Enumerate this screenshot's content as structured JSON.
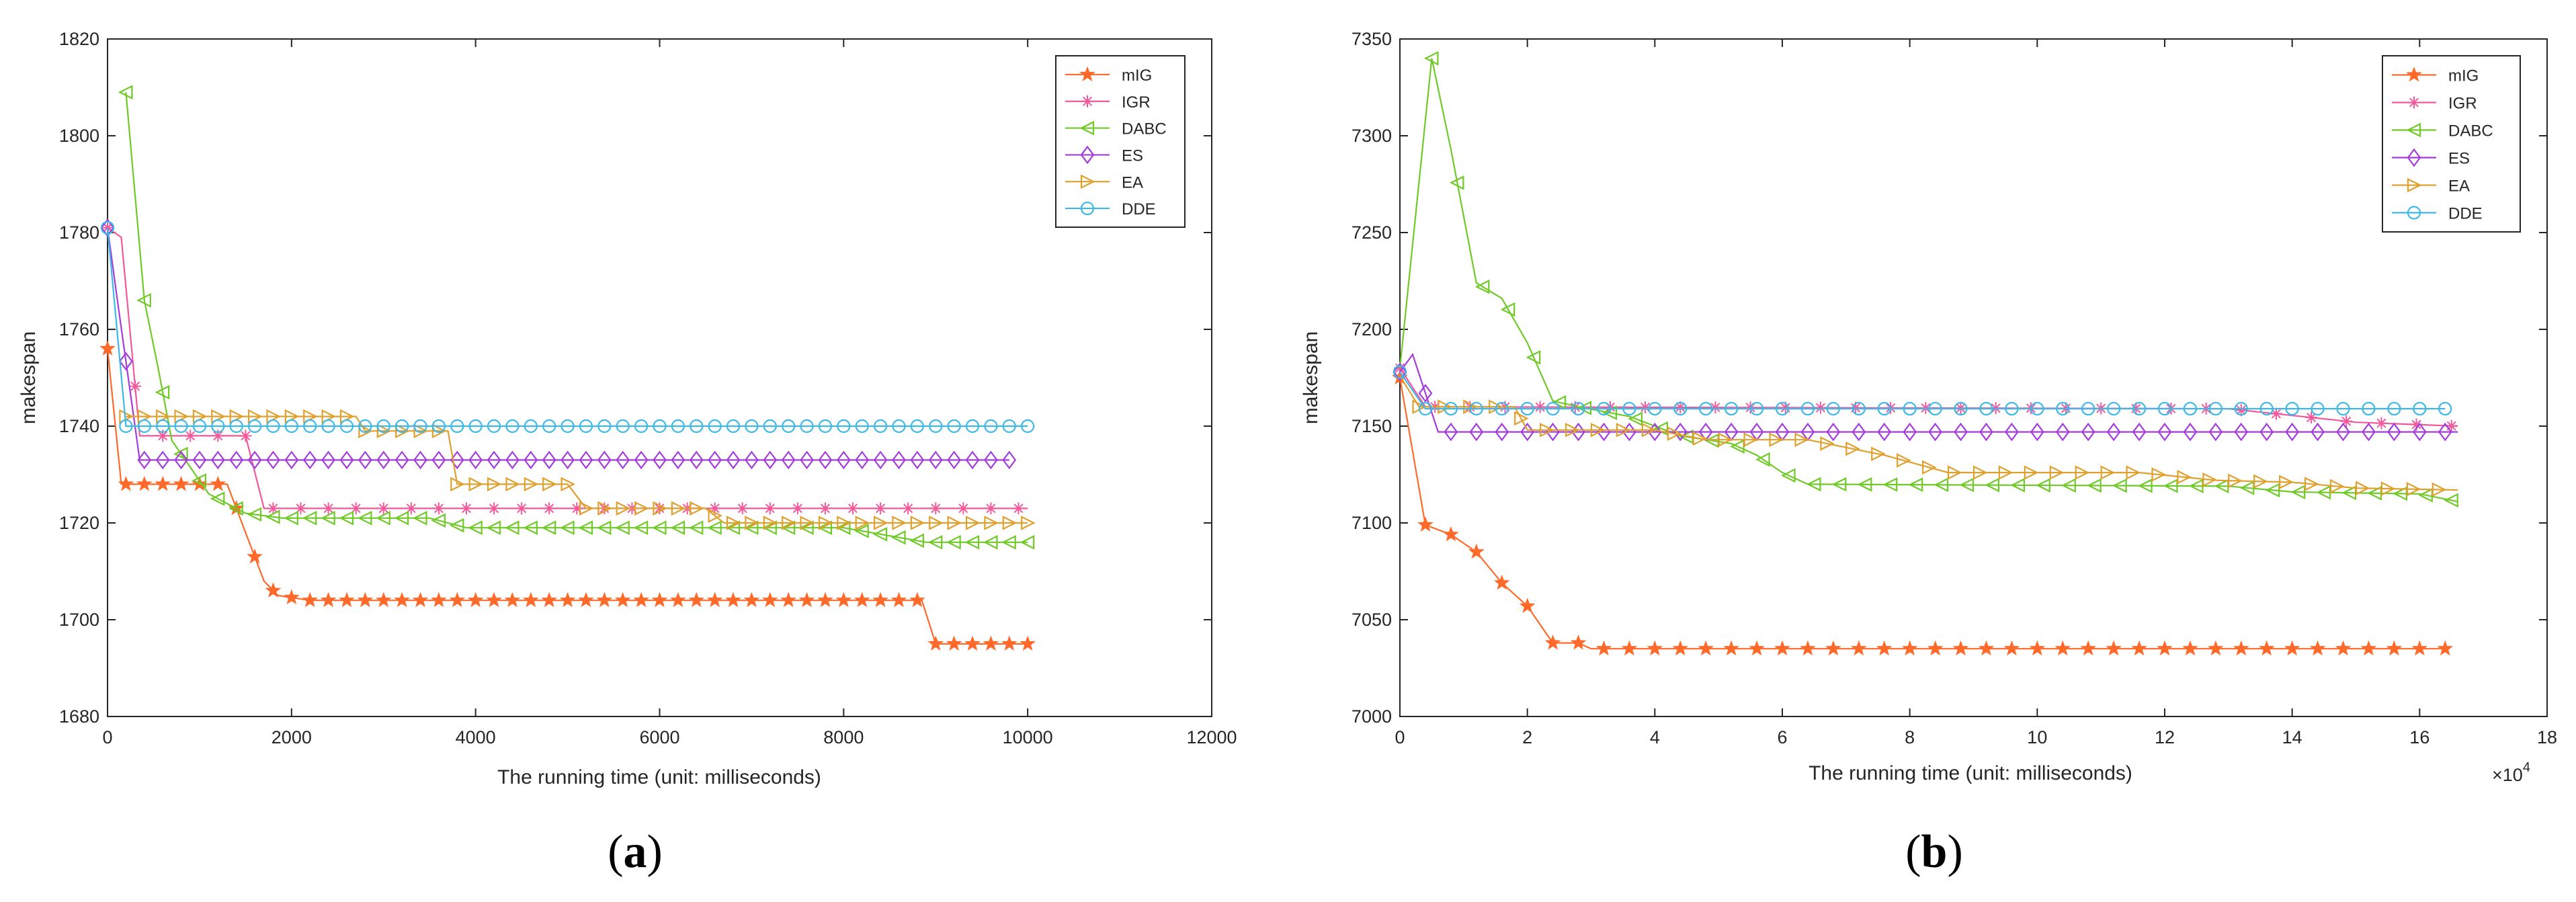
{
  "chart_data": [
    {
      "type": "line",
      "panel_caption": {
        "open": "(",
        "letter": "a",
        "close": ")"
      },
      "xlabel": "The running time (unit: milliseconds)",
      "ylabel": "makespan",
      "xlim": [
        0,
        12000
      ],
      "ylim": [
        1680,
        1820
      ],
      "xticks": [
        "0",
        "2000",
        "4000",
        "6000",
        "8000",
        "10000",
        "12000"
      ],
      "yticks": [
        "1680",
        "1700",
        "1720",
        "1740",
        "1760",
        "1780",
        "1800",
        "1820"
      ],
      "xtick_values": [
        0,
        2000,
        4000,
        6000,
        8000,
        10000,
        12000
      ],
      "ytick_values": [
        1680,
        1700,
        1720,
        1740,
        1760,
        1780,
        1800,
        1820
      ],
      "exponent_label": "",
      "legend_position": "top-right",
      "series": [
        {
          "name": "mIG",
          "color": "#FF6A2A",
          "marker": "star",
          "segments": [
            [
              0,
              1756
            ],
            [
              150,
              1728
            ],
            [
              1300,
              1728
            ],
            [
              1500,
              1718
            ],
            [
              1700,
              1708
            ],
            [
              1850,
              1705
            ],
            [
              2200,
              1704
            ],
            [
              8850,
              1704
            ],
            [
              9000,
              1695
            ],
            [
              10000,
              1695
            ]
          ],
          "markers": {
            "step": 200,
            "start": 0,
            "end": 10000
          }
        },
        {
          "name": "IGR",
          "color": "#F2589A",
          "marker": "asterisk",
          "segments": [
            [
              0,
              1781
            ],
            [
              150,
              1779
            ],
            [
              350,
              1738
            ],
            [
              1500,
              1738
            ],
            [
              1700,
              1723
            ],
            [
              10000,
              1723
            ]
          ],
          "markers": {
            "step": 300,
            "start": 0,
            "end": 10000
          }
        },
        {
          "name": "DABC",
          "color": "#6FC927",
          "marker": "triangle-left",
          "segments": [
            [
              200,
              1809
            ],
            [
              400,
              1766
            ],
            [
              550,
              1752
            ],
            [
              700,
              1737
            ],
            [
              1100,
              1726
            ],
            [
              1500,
              1722
            ],
            [
              1900,
              1721
            ],
            [
              3500,
              1721
            ],
            [
              3900,
              1719
            ],
            [
              8000,
              1719
            ],
            [
              8900,
              1716
            ],
            [
              10000,
              1716
            ]
          ],
          "markers": {
            "step": 200,
            "start": 200,
            "end": 10000
          }
        },
        {
          "name": "ES",
          "color": "#A43BDB",
          "marker": "diamond",
          "segments": [
            [
              0,
              1781
            ],
            [
              100,
              1767
            ],
            [
              350,
              1733
            ],
            [
              9800,
              1733
            ]
          ],
          "markers": {
            "step": 200,
            "start": 0,
            "end": 9800
          }
        },
        {
          "name": "EA",
          "color": "#E0A02E",
          "marker": "triangle-right",
          "segments": [
            [
              200,
              1742
            ],
            [
              2700,
              1742
            ],
            [
              2800,
              1739
            ],
            [
              3700,
              1739
            ],
            [
              3800,
              1728
            ],
            [
              5000,
              1728
            ],
            [
              5200,
              1723
            ],
            [
              6500,
              1723
            ],
            [
              6700,
              1720
            ],
            [
              10000,
              1720
            ]
          ],
          "markers": {
            "step": 200,
            "start": 200,
            "end": 10000
          }
        },
        {
          "name": "DDE",
          "color": "#3EB8E8",
          "marker": "circle",
          "segments": [
            [
              0,
              1781
            ],
            [
              200,
              1740
            ],
            [
              10000,
              1740
            ]
          ],
          "markers": {
            "step": 200,
            "start": 0,
            "end": 10000
          }
        }
      ]
    },
    {
      "type": "line",
      "panel_caption": {
        "open": "(",
        "letter": "b",
        "close": ")"
      },
      "xlabel": "The running time (unit: milliseconds)",
      "ylabel": "makespan",
      "xlim": [
        0,
        180000
      ],
      "ylim": [
        7000,
        7350
      ],
      "xticks": [
        "0",
        "2",
        "4",
        "6",
        "8",
        "10",
        "12",
        "14",
        "16",
        "18"
      ],
      "yticks": [
        "7000",
        "7050",
        "7100",
        "7150",
        "7200",
        "7250",
        "7300",
        "7350"
      ],
      "xtick_values": [
        0,
        20000,
        40000,
        60000,
        80000,
        100000,
        120000,
        140000,
        160000,
        180000
      ],
      "ytick_values": [
        7000,
        7050,
        7100,
        7150,
        7200,
        7250,
        7300,
        7350
      ],
      "exponent_label": "×10",
      "exponent_power": "4",
      "legend_position": "top-right",
      "series": [
        {
          "name": "mIG",
          "color": "#FF6A2A",
          "marker": "star",
          "segments": [
            [
              0,
              7175
            ],
            [
              4000,
              7099
            ],
            [
              8000,
              7094
            ],
            [
              12000,
              7085
            ],
            [
              16000,
              7069
            ],
            [
              20000,
              7057
            ],
            [
              24000,
              7038
            ],
            [
              28000,
              7038
            ],
            [
              30000,
              7035
            ],
            [
              164000,
              7035
            ]
          ],
          "markers": {
            "step": 4000,
            "start": 0,
            "end": 164000
          }
        },
        {
          "name": "IGR",
          "color": "#F2589A",
          "marker": "asterisk",
          "segments": [
            [
              0,
              7180
            ],
            [
              4000,
              7160
            ],
            [
              130000,
              7159
            ],
            [
              150000,
              7152
            ],
            [
              166000,
              7150
            ]
          ],
          "markers": {
            "step": 5500,
            "start": 0,
            "end": 166000
          }
        },
        {
          "name": "DABC",
          "color": "#6FC927",
          "marker": "triangle-left",
          "segments": [
            [
              0,
              7180
            ],
            [
              5000,
              7340
            ],
            [
              8000,
              7293
            ],
            [
              12000,
              7224
            ],
            [
              16000,
              7216
            ],
            [
              20000,
              7193
            ],
            [
              24000,
              7163
            ],
            [
              28000,
              7160
            ],
            [
              36000,
              7155
            ],
            [
              44000,
              7145
            ],
            [
              52000,
              7141
            ],
            [
              56000,
              7135
            ],
            [
              60000,
              7126
            ],
            [
              64000,
              7120
            ],
            [
              130000,
              7119
            ],
            [
              140000,
              7116
            ],
            [
              160000,
              7115
            ],
            [
              166000,
              7111
            ]
          ],
          "markers": {
            "step": 4000,
            "start": 5000,
            "end": 166000
          }
        },
        {
          "name": "ES",
          "color": "#A43BDB",
          "marker": "diamond",
          "segments": [
            [
              0,
              7178
            ],
            [
              2000,
              7187
            ],
            [
              6000,
              7147
            ],
            [
              166000,
              7147
            ]
          ],
          "markers": {
            "step": 4000,
            "start": 0,
            "end": 166000
          }
        },
        {
          "name": "EA",
          "color": "#E0A02E",
          "marker": "triangle-right",
          "segments": [
            [
              0,
              7176
            ],
            [
              3000,
              7160
            ],
            [
              18000,
              7160
            ],
            [
              20000,
              7148
            ],
            [
              40000,
              7148
            ],
            [
              48000,
              7143
            ],
            [
              64000,
              7143
            ],
            [
              76000,
              7135
            ],
            [
              86000,
              7126
            ],
            [
              116000,
              7126
            ],
            [
              128000,
              7122
            ],
            [
              140000,
              7121
            ],
            [
              150000,
              7118
            ],
            [
              166000,
              7117
            ]
          ],
          "markers": {
            "step": 4000,
            "start": 3000,
            "end": 166000
          }
        },
        {
          "name": "DDE",
          "color": "#3EB8E8",
          "marker": "circle",
          "segments": [
            [
              0,
              7178
            ],
            [
              4000,
              7159
            ],
            [
              164000,
              7159
            ]
          ],
          "markers": {
            "step": 4000,
            "start": 0,
            "end": 164000
          }
        }
      ]
    }
  ]
}
